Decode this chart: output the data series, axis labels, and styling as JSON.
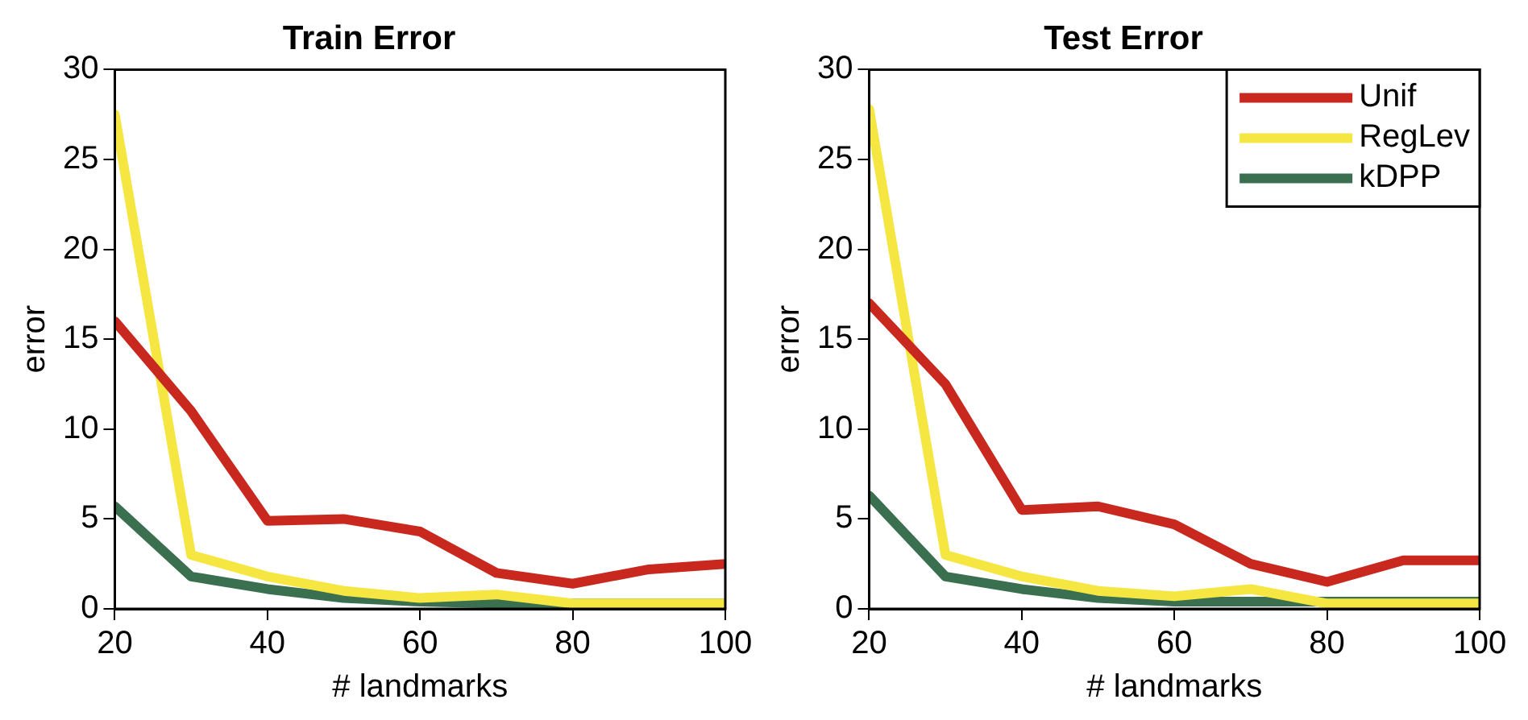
{
  "chart_data": [
    {
      "type": "line",
      "title": "Train Error",
      "xlabel": "# landmarks",
      "ylabel": "error",
      "x": [
        20,
        30,
        40,
        50,
        60,
        70,
        80,
        90,
        100
      ],
      "xlim": [
        20,
        100
      ],
      "xticks": [
        20,
        40,
        60,
        80,
        100
      ],
      "ylim": [
        0,
        30
      ],
      "yticks": [
        0,
        5,
        10,
        15,
        20,
        25,
        30
      ],
      "grid": false,
      "legend": false,
      "marker": "none",
      "line_style": "solid",
      "series": [
        {
          "color": "#c8281e",
          "values": [
            16,
            11,
            4.9,
            5,
            4.3,
            2,
            1.4,
            2.2,
            2.5
          ]
        },
        {
          "color": "#f5e642",
          "values": [
            27.5,
            3,
            1.8,
            1,
            0.6,
            0.8,
            0.3,
            0.3,
            0.3
          ]
        },
        {
          "color": "#3a7050",
          "values": [
            5.7,
            1.8,
            1.1,
            0.6,
            0.4,
            0.3,
            0.3,
            0.3,
            0.3
          ]
        }
      ]
    },
    {
      "type": "line",
      "title": "Test Error",
      "xlabel": "# landmarks",
      "ylabel": "error",
      "x": [
        20,
        30,
        40,
        50,
        60,
        70,
        80,
        90,
        100
      ],
      "xlim": [
        20,
        100
      ],
      "xticks": [
        20,
        40,
        60,
        80,
        100
      ],
      "ylim": [
        0,
        30
      ],
      "yticks": [
        0,
        5,
        10,
        15,
        20,
        25,
        30
      ],
      "grid": false,
      "legend": "top right",
      "marker": "none",
      "line_style": "solid",
      "series": [
        {
          "name": "Unif",
          "color": "#c8281e",
          "values": [
            17,
            12.5,
            5.5,
            5.7,
            4.7,
            2.5,
            1.5,
            2.7,
            2.7
          ]
        },
        {
          "name": "RegLev",
          "color": "#f5e642",
          "values": [
            27.8,
            3,
            1.8,
            1,
            0.7,
            1.1,
            0.3,
            0.3,
            0.3
          ]
        },
        {
          "name": "kDPP",
          "color": "#3a7050",
          "values": [
            6.3,
            1.8,
            1.1,
            0.6,
            0.4,
            0.4,
            0.4,
            0.4,
            0.4
          ]
        }
      ]
    }
  ]
}
